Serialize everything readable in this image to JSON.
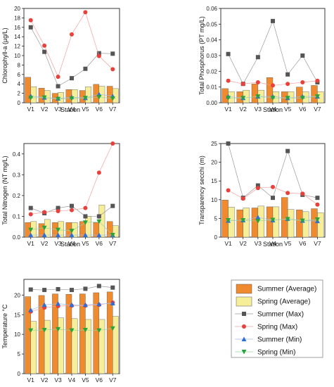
{
  "colors": {
    "summer_avg": "#f08a2e",
    "spring_avg": "#f7ee9a",
    "summer_max": "#555555",
    "spring_max": "#e8403a",
    "summer_min": "#2d6fd6",
    "spring_min": "#2aa43a",
    "bar_stroke": "#555555"
  },
  "legend": {
    "items": [
      {
        "key": "summer_avg",
        "label": "Summer (Average)",
        "kind": "bar"
      },
      {
        "key": "spring_avg",
        "label": "Spring (Average)",
        "kind": "bar"
      },
      {
        "key": "summer_max",
        "label": "Summer (Max)",
        "kind": "square"
      },
      {
        "key": "spring_max",
        "label": "Spring (Max)",
        "kind": "circle"
      },
      {
        "key": "summer_min",
        "label": "Summer (Min)",
        "kind": "triangle-up"
      },
      {
        "key": "spring_min",
        "label": "Spring (Min)",
        "kind": "triangle-down"
      }
    ]
  },
  "chart_data": [
    {
      "type": "bar",
      "xlabel": "Station",
      "ylabel": "Chlorophyll-a (µg/L)",
      "categories": [
        "V1",
        "V2",
        "V3",
        "V4",
        "V5",
        "V6",
        "V7"
      ],
      "ylim": [
        0,
        20
      ],
      "yticks": [
        0,
        2,
        4,
        6,
        8,
        10,
        12,
        14,
        16,
        18,
        20
      ],
      "ytick_labels": [
        "0",
        "2",
        "4",
        "6",
        "8",
        "10",
        "12",
        "14",
        "16",
        "18",
        "20"
      ],
      "series": [
        {
          "key": "summer_avg",
          "values": [
            5.4,
            3.1,
            2.0,
            2.8,
            2.6,
            3.9,
            3.5
          ]
        },
        {
          "key": "spring_avg",
          "values": [
            3.4,
            2.6,
            2.2,
            2.8,
            3.4,
            3.5,
            3.0
          ]
        },
        {
          "key": "summer_max",
          "values": [
            16.0,
            10.8,
            3.5,
            5.2,
            7.2,
            10.5,
            10.4
          ]
        },
        {
          "key": "spring_max",
          "values": [
            17.5,
            12.1,
            5.5,
            14.5,
            19.2,
            9.9,
            7.1
          ]
        },
        {
          "key": "summer_min",
          "values": [
            1.4,
            1.1,
            0.9,
            1.2,
            1.0,
            1.8,
            1.4
          ]
        },
        {
          "key": "spring_min",
          "values": [
            1.0,
            1.1,
            0.8,
            0.9,
            1.0,
            1.2,
            0.9
          ]
        }
      ]
    },
    {
      "type": "bar",
      "xlabel": "Station",
      "ylabel": "Total Phosphorus (PT mg/L)",
      "categories": [
        "V1",
        "V2",
        "V3",
        "V4",
        "V5",
        "V6",
        "V7"
      ],
      "ylim": [
        0,
        0.06
      ],
      "yticks": [
        0,
        0.01,
        0.02,
        0.03,
        0.04,
        0.05,
        0.06
      ],
      "ytick_labels": [
        "0.00",
        "0.01",
        "0.02",
        "0.03",
        "0.04",
        "0.05",
        "0.06"
      ],
      "series": [
        {
          "key": "summer_avg",
          "values": [
            0.009,
            0.007,
            0.012,
            0.016,
            0.007,
            0.01,
            0.011
          ]
        },
        {
          "key": "spring_avg",
          "values": [
            0.007,
            0.008,
            0.008,
            0.007,
            0.007,
            0.007,
            0.007
          ]
        },
        {
          "key": "summer_max",
          "values": [
            0.031,
            0.012,
            0.029,
            0.052,
            0.018,
            0.03,
            0.013
          ]
        },
        {
          "key": "spring_max",
          "values": [
            0.014,
            0.012,
            0.013,
            0.011,
            0.012,
            0.013,
            0.014
          ]
        },
        {
          "key": "summer_min",
          "values": [
            0.004,
            0.003,
            0.004,
            0.004,
            0.003,
            0.004,
            0.004
          ]
        },
        {
          "key": "spring_min",
          "values": [
            0.003,
            0.003,
            0.004,
            0.003,
            0.003,
            0.003,
            0.004
          ]
        }
      ]
    },
    {
      "type": "bar",
      "xlabel": "Station",
      "ylabel": "Total Nitrogen (NT mg/L)",
      "categories": [
        "V1",
        "V2",
        "V3",
        "V4",
        "V5",
        "V6",
        "V7"
      ],
      "ylim": [
        0,
        0.45
      ],
      "yticks": [
        0,
        0.1,
        0.2,
        0.3,
        0.4
      ],
      "ytick_labels": [
        "0.0",
        "0.1",
        "0.2",
        "0.3",
        "0.4"
      ],
      "series": [
        {
          "key": "summer_avg",
          "values": [
            0.07,
            0.065,
            0.07,
            0.07,
            0.075,
            0.07,
            0.075
          ]
        },
        {
          "key": "spring_avg",
          "values": [
            0.075,
            0.085,
            0.075,
            0.07,
            0.1,
            0.155,
            0.055
          ]
        },
        {
          "key": "summer_max",
          "values": [
            0.14,
            0.115,
            0.14,
            0.15,
            0.1,
            0.1,
            0.15
          ]
        },
        {
          "key": "spring_max",
          "values": [
            0.11,
            0.12,
            0.125,
            0.13,
            0.14,
            0.31,
            0.45
          ]
        },
        {
          "key": "summer_min",
          "values": [
            0.01,
            0.01,
            0.01,
            0.01,
            0.01,
            0.01,
            0.01
          ]
        },
        {
          "key": "spring_min",
          "values": [
            0.035,
            0.045,
            0.035,
            0.03,
            0.07,
            0.075,
            0.01
          ]
        }
      ]
    },
    {
      "type": "bar",
      "xlabel": "Station",
      "ylabel": "Transparency secchi (m)",
      "categories": [
        "V1",
        "V2",
        "V3",
        "V4",
        "V5",
        "V6",
        "V7"
      ],
      "ylim": [
        0,
        25
      ],
      "yticks": [
        0,
        5,
        10,
        15,
        20,
        25
      ],
      "ytick_labels": [
        "0",
        "5",
        "10",
        "15",
        "20",
        "25"
      ],
      "series": [
        {
          "key": "summer_avg",
          "values": [
            9.9,
            7.3,
            7.8,
            8.1,
            10.6,
            7.3,
            7.6
          ]
        },
        {
          "key": "spring_avg",
          "values": [
            8.0,
            7.8,
            8.3,
            8.1,
            7.4,
            6.8,
            6.5
          ]
        },
        {
          "key": "summer_max",
          "values": [
            25.0,
            10.5,
            13.8,
            10.5,
            23.0,
            11.3,
            10.5
          ]
        },
        {
          "key": "spring_max",
          "values": [
            12.5,
            10.3,
            13.1,
            13.4,
            11.8,
            11.6,
            8.7
          ]
        },
        {
          "key": "summer_min",
          "values": [
            4.4,
            4.5,
            5.3,
            4.5,
            4.9,
            4.4,
            4.3
          ]
        },
        {
          "key": "spring_min",
          "values": [
            4.5,
            4.5,
            4.3,
            4.6,
            4.8,
            4.4,
            4.7
          ]
        }
      ]
    },
    {
      "type": "bar",
      "xlabel": "",
      "ylabel": "Temperature °C",
      "categories": [
        "V1",
        "V2",
        "V3",
        "V4",
        "V5",
        "V6",
        "V7"
      ],
      "ylim": [
        0,
        24
      ],
      "yticks": [
        0,
        5,
        10,
        15,
        20
      ],
      "ytick_labels": [
        "0",
        "5",
        "10",
        "15",
        "20"
      ],
      "series": [
        {
          "key": "summer_avg",
          "values": [
            19.6,
            19.9,
            20.3,
            20.2,
            20.3,
            20.6,
            20.8
          ]
        },
        {
          "key": "spring_avg",
          "values": [
            13.3,
            13.6,
            14.2,
            14.0,
            13.8,
            13.8,
            14.6
          ]
        },
        {
          "key": "summer_max",
          "values": [
            21.4,
            21.3,
            21.5,
            21.3,
            21.6,
            22.3,
            21.9
          ]
        },
        {
          "key": "spring_max",
          "values": [
            15.8,
            16.8,
            17.2,
            17.3,
            17.3,
            17.5,
            18.1
          ]
        },
        {
          "key": "summer_min",
          "values": [
            16.2,
            17.5,
            17.8,
            17.5,
            17.5,
            17.7,
            17.9
          ]
        },
        {
          "key": "spring_min",
          "values": [
            11.0,
            11.1,
            11.3,
            11.0,
            11.1,
            11.0,
            11.5
          ]
        }
      ]
    }
  ]
}
